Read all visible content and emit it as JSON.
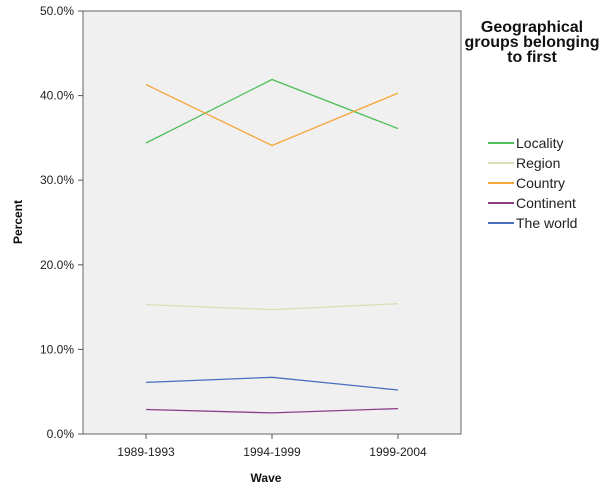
{
  "chart_data": {
    "type": "line",
    "title": "",
    "xlabel": "Wave",
    "ylabel": "Percent",
    "categories": [
      "1989-1993",
      "1994-1999",
      "1999-2004"
    ],
    "ylim": [
      0,
      50
    ],
    "yticks": [
      0,
      10,
      20,
      30,
      40,
      50
    ],
    "ytick_labels": [
      "0.0%",
      "10.0%",
      "20.0%",
      "30.0%",
      "40.0%",
      "50.0%"
    ],
    "grid": false,
    "legend_title": "Geographical groups belonging to first",
    "legend_position": "right",
    "series": [
      {
        "name": "Locality",
        "color": "#4fbf5a",
        "values": [
          34.4,
          41.9,
          36.1
        ]
      },
      {
        "name": "Region",
        "color": "#ddddb8",
        "values": [
          15.3,
          14.7,
          15.4
        ]
      },
      {
        "name": "Country",
        "color": "#f5a63a",
        "values": [
          41.3,
          34.1,
          40.3
        ]
      },
      {
        "name": "Continent",
        "color": "#8b3f8b",
        "values": [
          2.9,
          2.5,
          3.0
        ]
      },
      {
        "name": "The world",
        "color": "#4a6fbf",
        "values": [
          6.1,
          6.7,
          5.2
        ]
      }
    ]
  }
}
